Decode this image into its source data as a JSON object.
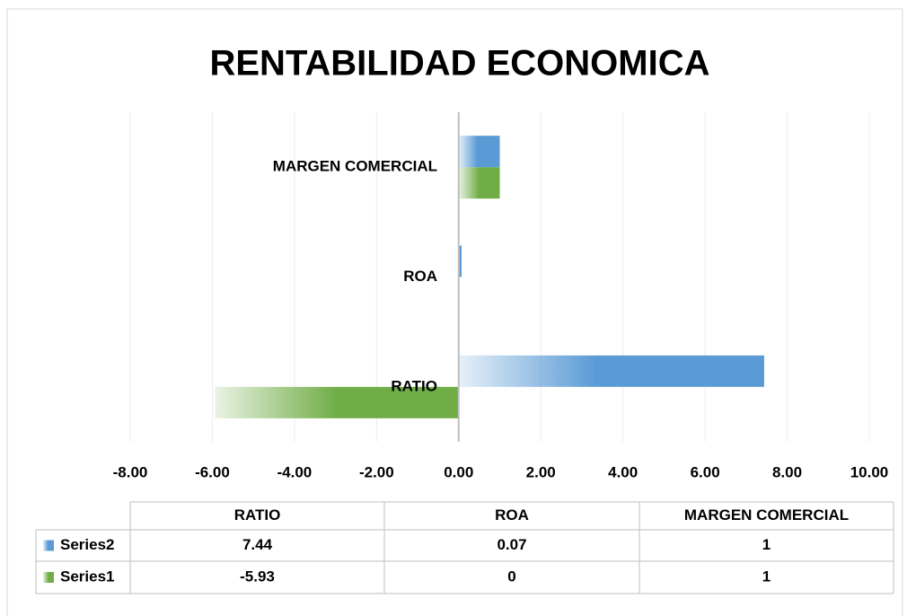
{
  "chart_data": {
    "type": "barh",
    "title": "RENTABILIDAD   ECONOMICA",
    "categories": [
      "RATIO",
      "ROA",
      "MARGEN COMERCIAL"
    ],
    "series": [
      {
        "name": "Series1",
        "color": "#70ad47",
        "values": [
          -5.93,
          0,
          1
        ]
      },
      {
        "name": "Series2",
        "color": "#5b9bd5",
        "values": [
          7.44,
          0.07,
          1
        ]
      }
    ],
    "xlim": [
      -8,
      10
    ],
    "xticks": [
      {
        "value": -8,
        "label": "-8.00"
      },
      {
        "value": -6,
        "label": "-6.00"
      },
      {
        "value": -4,
        "label": "-4.00"
      },
      {
        "value": -2,
        "label": "-2.00"
      },
      {
        "value": 0,
        "label": "0.00"
      },
      {
        "value": 2,
        "label": "2.00"
      },
      {
        "value": 4,
        "label": "4.00"
      },
      {
        "value": 6,
        "label": "6.00"
      },
      {
        "value": 8,
        "label": "8.00"
      },
      {
        "value": 10,
        "label": "10.00"
      }
    ],
    "grid": true,
    "data_table": true
  }
}
